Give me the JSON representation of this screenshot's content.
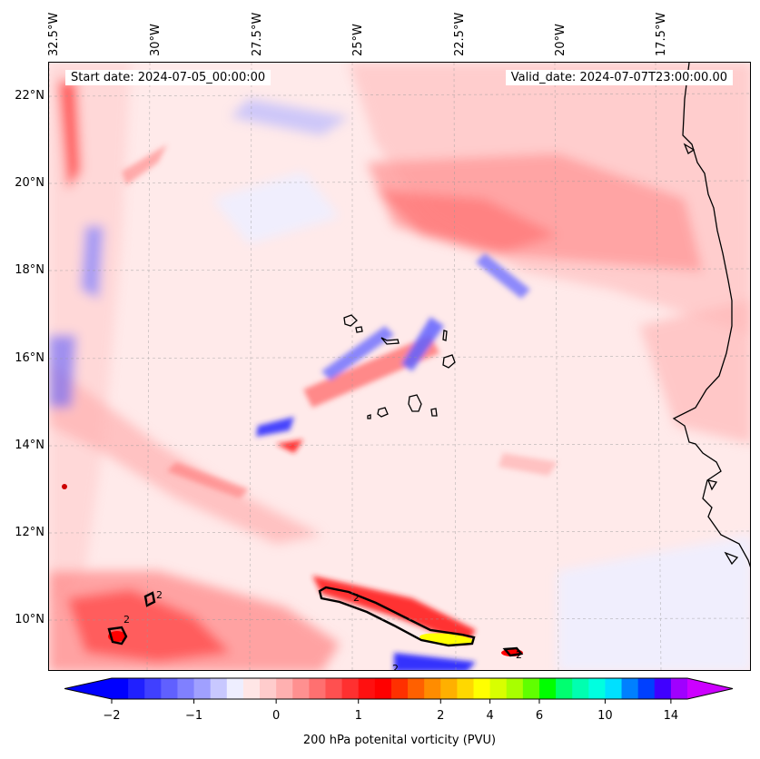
{
  "map": {
    "start_date": "Start date: 2024-07-05_00:00:00",
    "valid_date": "Valid_date: 2024-07-07T23:00:00.00",
    "lon_labels": [
      "32.5°W",
      "30°W",
      "27.5°W",
      "25°W",
      "22.5°W",
      "20°W",
      "17.5°W"
    ],
    "lat_labels": [
      "22°N",
      "20°N",
      "18°N",
      "16°N",
      "14°N",
      "12°N",
      "10°N"
    ],
    "contour_label": "2",
    "extent": {
      "lon_min": -32.5,
      "lon_max": -15.25,
      "lat_min": 8.9,
      "lat_max": 22.75
    }
  },
  "colorbar": {
    "label": "200 hPa potenital vorticity (PVU)",
    "ticks": [
      "−2",
      "−1",
      "0",
      "1",
      "2",
      "4",
      "6",
      "10",
      "14"
    ],
    "colors": [
      "#0000ff",
      "#2020ff",
      "#4040ff",
      "#6060ff",
      "#8080ff",
      "#a0a0ff",
      "#c8c8ff",
      "#eeeeff",
      "#ffe6e6",
      "#ffcccc",
      "#ffb0b0",
      "#ff9090",
      "#ff7070",
      "#ff5050",
      "#ff3030",
      "#ff1010",
      "#ff0000",
      "#ff3000",
      "#ff6000",
      "#ff8c00",
      "#ffb000",
      "#ffd800",
      "#ffff00",
      "#d8ff00",
      "#a8ff00",
      "#60ff00",
      "#00ff00",
      "#00ff70",
      "#00ffb0",
      "#00ffe0",
      "#00e0ff",
      "#0080ff",
      "#0040ff",
      "#4000ff",
      "#a000ff"
    ],
    "under_color": "#0000ff",
    "over_color": "#cc00ff"
  }
}
